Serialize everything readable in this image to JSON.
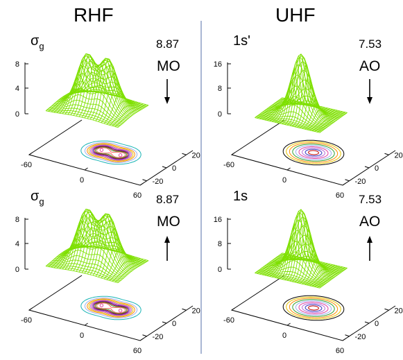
{
  "headers": {
    "left": "RHF",
    "right": "UHF"
  },
  "panels": [
    {
      "state": "σ",
      "state_sub": "g",
      "energy": "8.87",
      "kind": "MO",
      "arrow": "down",
      "surface": "double",
      "contour_colors": [
        "#18b4b4",
        "#9ab0f0",
        "#ff8c00",
        "#e6c200",
        "#b86ad8",
        "#e040a0",
        "#3030c0",
        "#c00000",
        "#30a030",
        "#ff6060"
      ],
      "z_ticks": [
        "0",
        "4",
        "8"
      ],
      "y_ticks": [
        "20",
        "0",
        "-20"
      ],
      "x_ticks": [
        "-60",
        "0",
        "60"
      ]
    },
    {
      "state": "1s'",
      "state_sub": "",
      "energy": "7.53",
      "kind": "AO",
      "arrow": "down",
      "surface": "single",
      "contour_colors": [
        "#000000",
        "#e6c200",
        "#ff8c00",
        "#30a030",
        "#9ab0f0",
        "#e040a0",
        "#b86ad8",
        "#3030c0",
        "#c00000"
      ],
      "z_ticks": [
        "0",
        "8",
        "16"
      ],
      "y_ticks": [
        "20",
        "0",
        "-20"
      ],
      "x_ticks": [
        "-60",
        "0",
        "60"
      ]
    },
    {
      "state": "σ",
      "state_sub": "g",
      "energy": "8.87",
      "kind": "MO",
      "arrow": "up",
      "surface": "double",
      "contour_colors": [
        "#18b4b4",
        "#9ab0f0",
        "#ff8c00",
        "#e6c200",
        "#b86ad8",
        "#e040a0",
        "#3030c0",
        "#c00000",
        "#30a030",
        "#ff6060"
      ],
      "z_ticks": [
        "0",
        "4",
        "8"
      ],
      "y_ticks": [
        "20",
        "0",
        "-20"
      ],
      "x_ticks": [
        "-60",
        "0",
        "60"
      ]
    },
    {
      "state": "1s",
      "state_sub": "",
      "energy": "7.53",
      "kind": "AO",
      "arrow": "up",
      "surface": "single",
      "contour_colors": [
        "#000000",
        "#e6c200",
        "#ff8c00",
        "#30a030",
        "#9ab0f0",
        "#e040a0",
        "#b86ad8",
        "#3030c0",
        "#c00000"
      ],
      "z_ticks": [
        "0",
        "8",
        "16"
      ],
      "y_ticks": [
        "20",
        "0",
        "-20"
      ],
      "x_ticks": [
        "-60",
        "0",
        "60"
      ]
    }
  ]
}
